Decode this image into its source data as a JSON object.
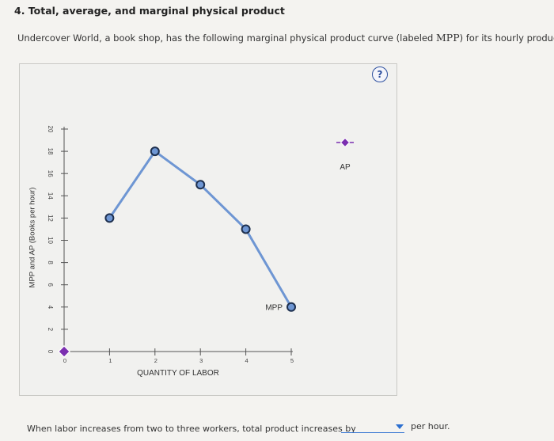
{
  "question": {
    "title": "4. Total, average, and marginal physical product",
    "intro_before": "Undercover World, a book shop, has the following marginal physical product curve (labeled ",
    "intro_abbr": "MPP",
    "intro_after": ") for its hourly production.",
    "help_label": "?"
  },
  "chart_data": {
    "type": "line",
    "ylabel": "MPP and AP (Books per hour)",
    "xlabel": "QUANTITY OF LABOR",
    "xlim": [
      0,
      5
    ],
    "ylim": [
      0,
      20
    ],
    "x_ticks": [
      "0",
      "1",
      "2",
      "3",
      "4",
      "5"
    ],
    "y_ticks": [
      "0",
      "2",
      "4",
      "6",
      "8",
      "10",
      "12",
      "14",
      "16",
      "18",
      "20"
    ],
    "series": [
      {
        "name": "MPP",
        "x": [
          1,
          2,
          3,
          4,
          5
        ],
        "y": [
          12,
          18,
          15,
          11,
          4
        ],
        "color": "#6e96d3",
        "marker_fill": "#6e96d3",
        "marker_stroke": "#1d2f4e"
      },
      {
        "name": "AP",
        "x": [
          0
        ],
        "y": [
          0
        ],
        "color": "#7b2fb0",
        "marker": "diamond"
      }
    ],
    "legend": {
      "ap_label": "AP",
      "mpp_label": "MPP"
    }
  },
  "answer": {
    "prompt": "When labor increases from two to three workers, total product increases by",
    "selected": "",
    "unit": "per hour."
  }
}
